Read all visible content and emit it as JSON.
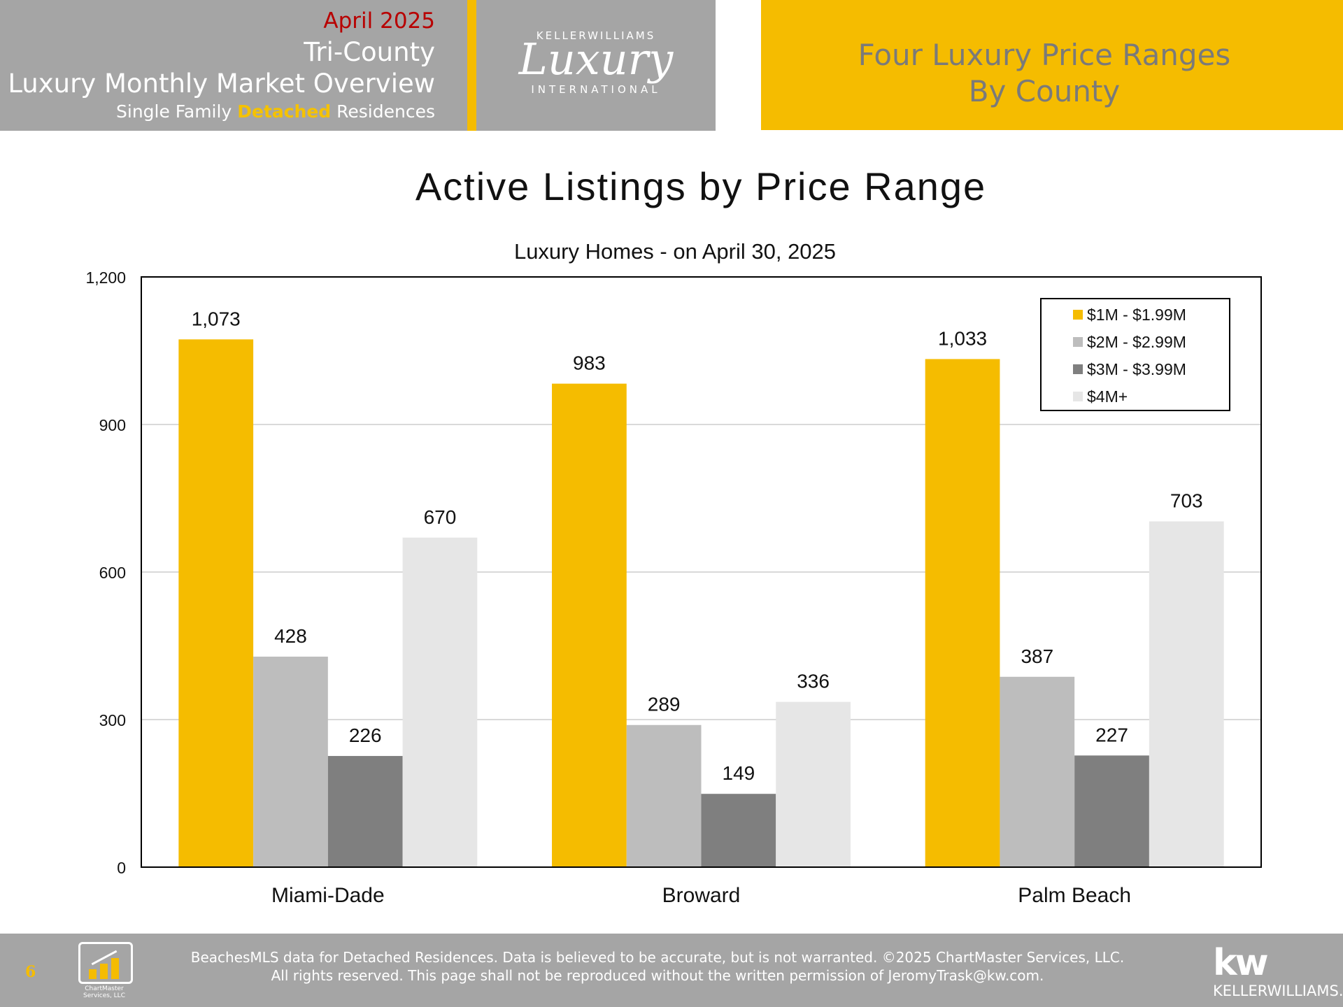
{
  "header": {
    "month": "April 2025",
    "region": "Tri-County",
    "title": "Luxury Monthly Market Overview",
    "subtitle_pre": "Single Family ",
    "subtitle_highlight": "Detached",
    "subtitle_post": " Residences",
    "logo_top": "KELLERWILLIAMS",
    "logo_script": "Luxury",
    "logo_bottom": "INTERNATIONAL",
    "right_line1": "Four Luxury Price Ranges",
    "right_line2": "By County"
  },
  "colors": {
    "accent": "#f5bc00",
    "header_gray": "#a5a5a5",
    "series": [
      "#f5bc00",
      "#bdbdbd",
      "#7f7f7f",
      "#e6e6e6"
    ]
  },
  "chart_data": {
    "type": "bar",
    "title": "Active Listings by Price Range",
    "subtitle": "Luxury Homes - on April 30, 2025",
    "xlabel": "",
    "ylabel": "",
    "categories": [
      "Miami-Dade",
      "Broward",
      "Palm Beach"
    ],
    "series": [
      {
        "name": "$1M - $1.99M",
        "values": [
          1073,
          983,
          1033
        ],
        "labels": [
          "1,073",
          "983",
          "1,033"
        ]
      },
      {
        "name": "$2M - $2.99M",
        "values": [
          428,
          289,
          387
        ],
        "labels": [
          "428",
          "289",
          "387"
        ]
      },
      {
        "name": "$3M - $3.99M",
        "values": [
          226,
          149,
          227
        ],
        "labels": [
          "226",
          "149",
          "227"
        ]
      },
      {
        "name": "$4M+",
        "values": [
          670,
          336,
          703
        ],
        "labels": [
          "670",
          "336",
          "703"
        ]
      }
    ],
    "ylim": [
      0,
      1200
    ],
    "yticks": [
      0,
      300,
      600,
      900,
      1200
    ],
    "ytick_labels": [
      "0",
      "300",
      "600",
      "900",
      "1,200"
    ],
    "grid": true,
    "legend": "top-right"
  },
  "footer": {
    "page_number": "6",
    "chartmaster_logo": "ChartMaster Services, LLC",
    "disclaimer_line1": "BeachesMLS data for Detached Residences.  Data is believed to be accurate, but is not warranted.   ©2025  ChartMaster Services, LLC.",
    "disclaimer_line2": "All rights reserved. This page shall not be reproduced without the written permission of JeromyTrask@kw.com.",
    "kw_mark": "kw",
    "kw_name": "KELLERWILLIAMS."
  }
}
